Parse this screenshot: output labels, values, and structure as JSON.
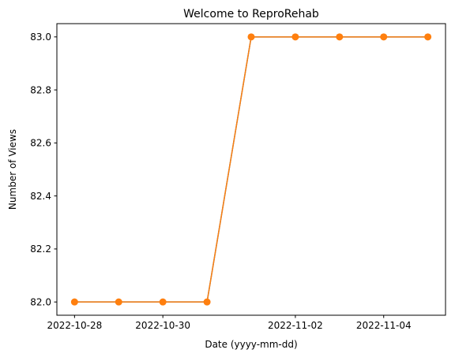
{
  "chart_data": {
    "type": "line",
    "title": "Welcome to ReproRehab",
    "xlabel": "Date (yyyy-mm-dd)",
    "ylabel": "Number of Views",
    "x": [
      "2022-10-28",
      "2022-10-29",
      "2022-10-30",
      "2022-10-31",
      "2022-11-01",
      "2022-11-02",
      "2022-11-03",
      "2022-11-04",
      "2022-11-05"
    ],
    "series": [
      {
        "values": [
          82,
          82,
          82,
          82,
          83,
          83,
          83,
          83,
          83
        ],
        "color": "#1f77b4"
      },
      {
        "values": [
          82,
          82,
          82,
          82,
          83,
          83,
          83,
          83,
          83
        ],
        "color": "#ff7f0e",
        "marker": "circle"
      }
    ],
    "xticks": [
      "2022-10-28",
      "2022-10-30",
      "2022-11-02",
      "2022-11-04"
    ],
    "yticks": [
      82.0,
      82.2,
      82.4,
      82.6,
      82.8,
      83.0
    ],
    "ytick_labels": [
      "82.0",
      "82.2",
      "82.4",
      "82.6",
      "82.8",
      "83.0"
    ],
    "ylim": [
      81.95,
      83.05
    ],
    "grid": false
  }
}
